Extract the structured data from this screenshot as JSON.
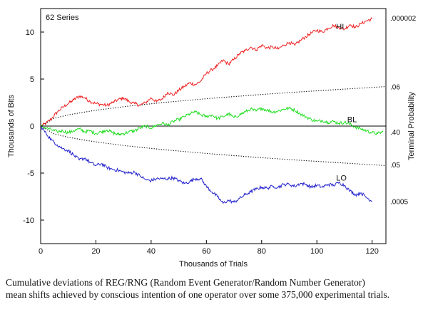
{
  "chart_data": {
    "type": "line",
    "title": "62 Series",
    "xlabel": "Thousands of Trials",
    "ylabel": "Thousands of Bits",
    "y2label": "Terminal Probability",
    "xlim": [
      0,
      125
    ],
    "ylim": [
      -12.5,
      12.5
    ],
    "xticks": [
      0,
      20,
      40,
      60,
      80,
      100,
      120
    ],
    "yticks": [
      10,
      5,
      0,
      -5,
      -10
    ],
    "ytick_labels": [
      "10",
      "5",
      "0",
      "-5",
      "-10"
    ],
    "series": [
      {
        "name": "HI",
        "color": "#ee2222",
        "x": [
          0,
          2,
          4,
          6,
          8,
          10,
          12,
          14,
          16,
          18,
          20,
          22,
          24,
          26,
          28,
          30,
          32,
          34,
          36,
          38,
          40,
          42,
          44,
          46,
          48,
          50,
          52,
          54,
          56,
          58,
          60,
          62,
          64,
          66,
          68,
          70,
          72,
          74,
          76,
          78,
          80,
          82,
          84,
          86,
          88,
          90,
          92,
          94,
          96,
          98,
          100,
          102,
          104,
          106,
          108,
          110,
          112,
          114,
          116,
          118,
          120
        ],
        "y": [
          0.0,
          0.3,
          0.8,
          1.5,
          2.0,
          2.4,
          2.8,
          3.2,
          3.0,
          2.6,
          2.4,
          2.3,
          2.2,
          2.5,
          2.8,
          3.0,
          2.6,
          2.4,
          2.2,
          2.5,
          3.0,
          2.6,
          2.9,
          3.6,
          3.3,
          3.8,
          4.2,
          4.6,
          4.4,
          4.8,
          5.6,
          6.0,
          6.4,
          7.0,
          6.6,
          7.1,
          7.7,
          8.0,
          8.4,
          8.1,
          8.6,
          8.3,
          8.4,
          8.2,
          8.6,
          8.9,
          8.6,
          9.1,
          9.5,
          9.9,
          10.2,
          10.0,
          10.4,
          10.7,
          10.5,
          10.3,
          10.8,
          10.5,
          10.9,
          11.2,
          11.4
        ]
      },
      {
        "name": "BL",
        "color": "#22dd22",
        "x": [
          0,
          2,
          4,
          6,
          8,
          10,
          12,
          14,
          16,
          18,
          20,
          22,
          24,
          26,
          28,
          30,
          32,
          34,
          36,
          38,
          40,
          42,
          44,
          46,
          48,
          50,
          52,
          54,
          56,
          58,
          60,
          62,
          64,
          66,
          68,
          70,
          72,
          74,
          76,
          78,
          80,
          82,
          84,
          86,
          88,
          90,
          92,
          94,
          96,
          98,
          100,
          102,
          104,
          106,
          108,
          110,
          112,
          114,
          116,
          118,
          120,
          122,
          124
        ],
        "y": [
          0.0,
          -0.2,
          -0.4,
          -0.6,
          -0.5,
          -0.7,
          -0.5,
          -0.3,
          -0.6,
          -0.5,
          -0.8,
          -0.6,
          -0.4,
          -0.7,
          -0.9,
          -0.8,
          -0.6,
          -0.5,
          -0.2,
          0.0,
          -0.2,
          0.1,
          0.3,
          0.1,
          0.5,
          0.7,
          1.0,
          1.3,
          1.5,
          1.2,
          1.0,
          1.2,
          0.8,
          1.0,
          1.3,
          0.9,
          1.2,
          1.5,
          1.8,
          1.6,
          1.9,
          1.7,
          1.5,
          1.6,
          1.8,
          1.9,
          1.7,
          1.3,
          1.0,
          0.7,
          0.5,
          0.6,
          0.4,
          0.5,
          0.3,
          0.4,
          0.2,
          -0.1,
          -0.3,
          -0.5,
          -0.7,
          -0.8,
          -0.6
        ]
      },
      {
        "name": "LO",
        "color": "#2222cc",
        "x": [
          0,
          2,
          4,
          6,
          8,
          10,
          12,
          14,
          16,
          18,
          20,
          22,
          24,
          26,
          28,
          30,
          32,
          34,
          36,
          38,
          40,
          42,
          44,
          46,
          48,
          50,
          52,
          54,
          56,
          58,
          60,
          62,
          64,
          66,
          68,
          70,
          72,
          74,
          76,
          78,
          80,
          82,
          84,
          86,
          88,
          90,
          92,
          94,
          96,
          98,
          100,
          102,
          104,
          106,
          108,
          110,
          112,
          114,
          116,
          118,
          120
        ],
        "y": [
          0.0,
          -0.8,
          -1.5,
          -2.0,
          -2.4,
          -2.6,
          -3.1,
          -3.6,
          -3.4,
          -3.9,
          -4.2,
          -4.0,
          -4.4,
          -4.6,
          -4.7,
          -4.9,
          -5.0,
          -4.9,
          -5.3,
          -5.7,
          -5.8,
          -5.6,
          -5.6,
          -5.6,
          -5.5,
          -5.8,
          -6.1,
          -5.9,
          -5.6,
          -5.6,
          -6.4,
          -7.0,
          -7.5,
          -8.2,
          -7.9,
          -8.1,
          -7.7,
          -7.3,
          -7.0,
          -6.7,
          -6.5,
          -6.6,
          -6.4,
          -6.5,
          -6.2,
          -6.2,
          -6.4,
          -6.1,
          -6.2,
          -6.5,
          -6.3,
          -6.5,
          -6.2,
          -6.3,
          -6.0,
          -6.3,
          -6.9,
          -7.3,
          -7.1,
          -7.6,
          -8.0
        ]
      }
    ],
    "curves": [
      {
        "name": "upper-envelope",
        "x": [
          0,
          5,
          10,
          15,
          20,
          25,
          30,
          35,
          40,
          45,
          50,
          55,
          60,
          65,
          70,
          75,
          80,
          85,
          90,
          95,
          100,
          105,
          110,
          115,
          120,
          125
        ],
        "y": [
          0.0,
          0.84,
          1.19,
          1.45,
          1.68,
          1.87,
          2.06,
          2.22,
          2.37,
          2.52,
          2.65,
          2.78,
          2.91,
          3.03,
          3.14,
          3.25,
          3.36,
          3.46,
          3.56,
          3.66,
          3.75,
          3.84,
          3.93,
          4.02,
          4.11,
          4.2
        ]
      },
      {
        "name": "lower-envelope",
        "x": [
          0,
          5,
          10,
          15,
          20,
          25,
          30,
          35,
          40,
          45,
          50,
          55,
          60,
          65,
          70,
          75,
          80,
          85,
          90,
          95,
          100,
          105,
          110,
          115,
          120,
          125
        ],
        "y": [
          0.0,
          -0.84,
          -1.19,
          -1.45,
          -1.68,
          -1.87,
          -2.06,
          -2.22,
          -2.37,
          -2.52,
          -2.65,
          -2.78,
          -2.91,
          -3.03,
          -3.14,
          -3.25,
          -3.36,
          -3.46,
          -3.56,
          -3.66,
          -3.75,
          -3.84,
          -3.93,
          -4.02,
          -4.11,
          -4.2
        ]
      }
    ],
    "series_label_anchors": [
      {
        "label": "HI",
        "x": 107,
        "y": 10.3
      },
      {
        "label": "BL",
        "x": 111,
        "y": 0.4
      },
      {
        "label": "LO",
        "x": 107,
        "y": -5.8
      }
    ],
    "right_axis_labels": [
      {
        "label": ".000002",
        "y": 11.5
      },
      {
        "label": ".06",
        "y": 4.2
      },
      {
        "label": ".40",
        "y": -0.6
      },
      {
        "label": ".05",
        "y": -4.1
      },
      {
        "label": ".0005",
        "y": -8.0
      }
    ],
    "caption_lines": [
      "Cumulative deviations of REG/RNG (Random Event Generator/Random Number Generator)",
      "mean shifts achieved by conscious intention of one operator over some 375,000 experimental trials."
    ]
  }
}
